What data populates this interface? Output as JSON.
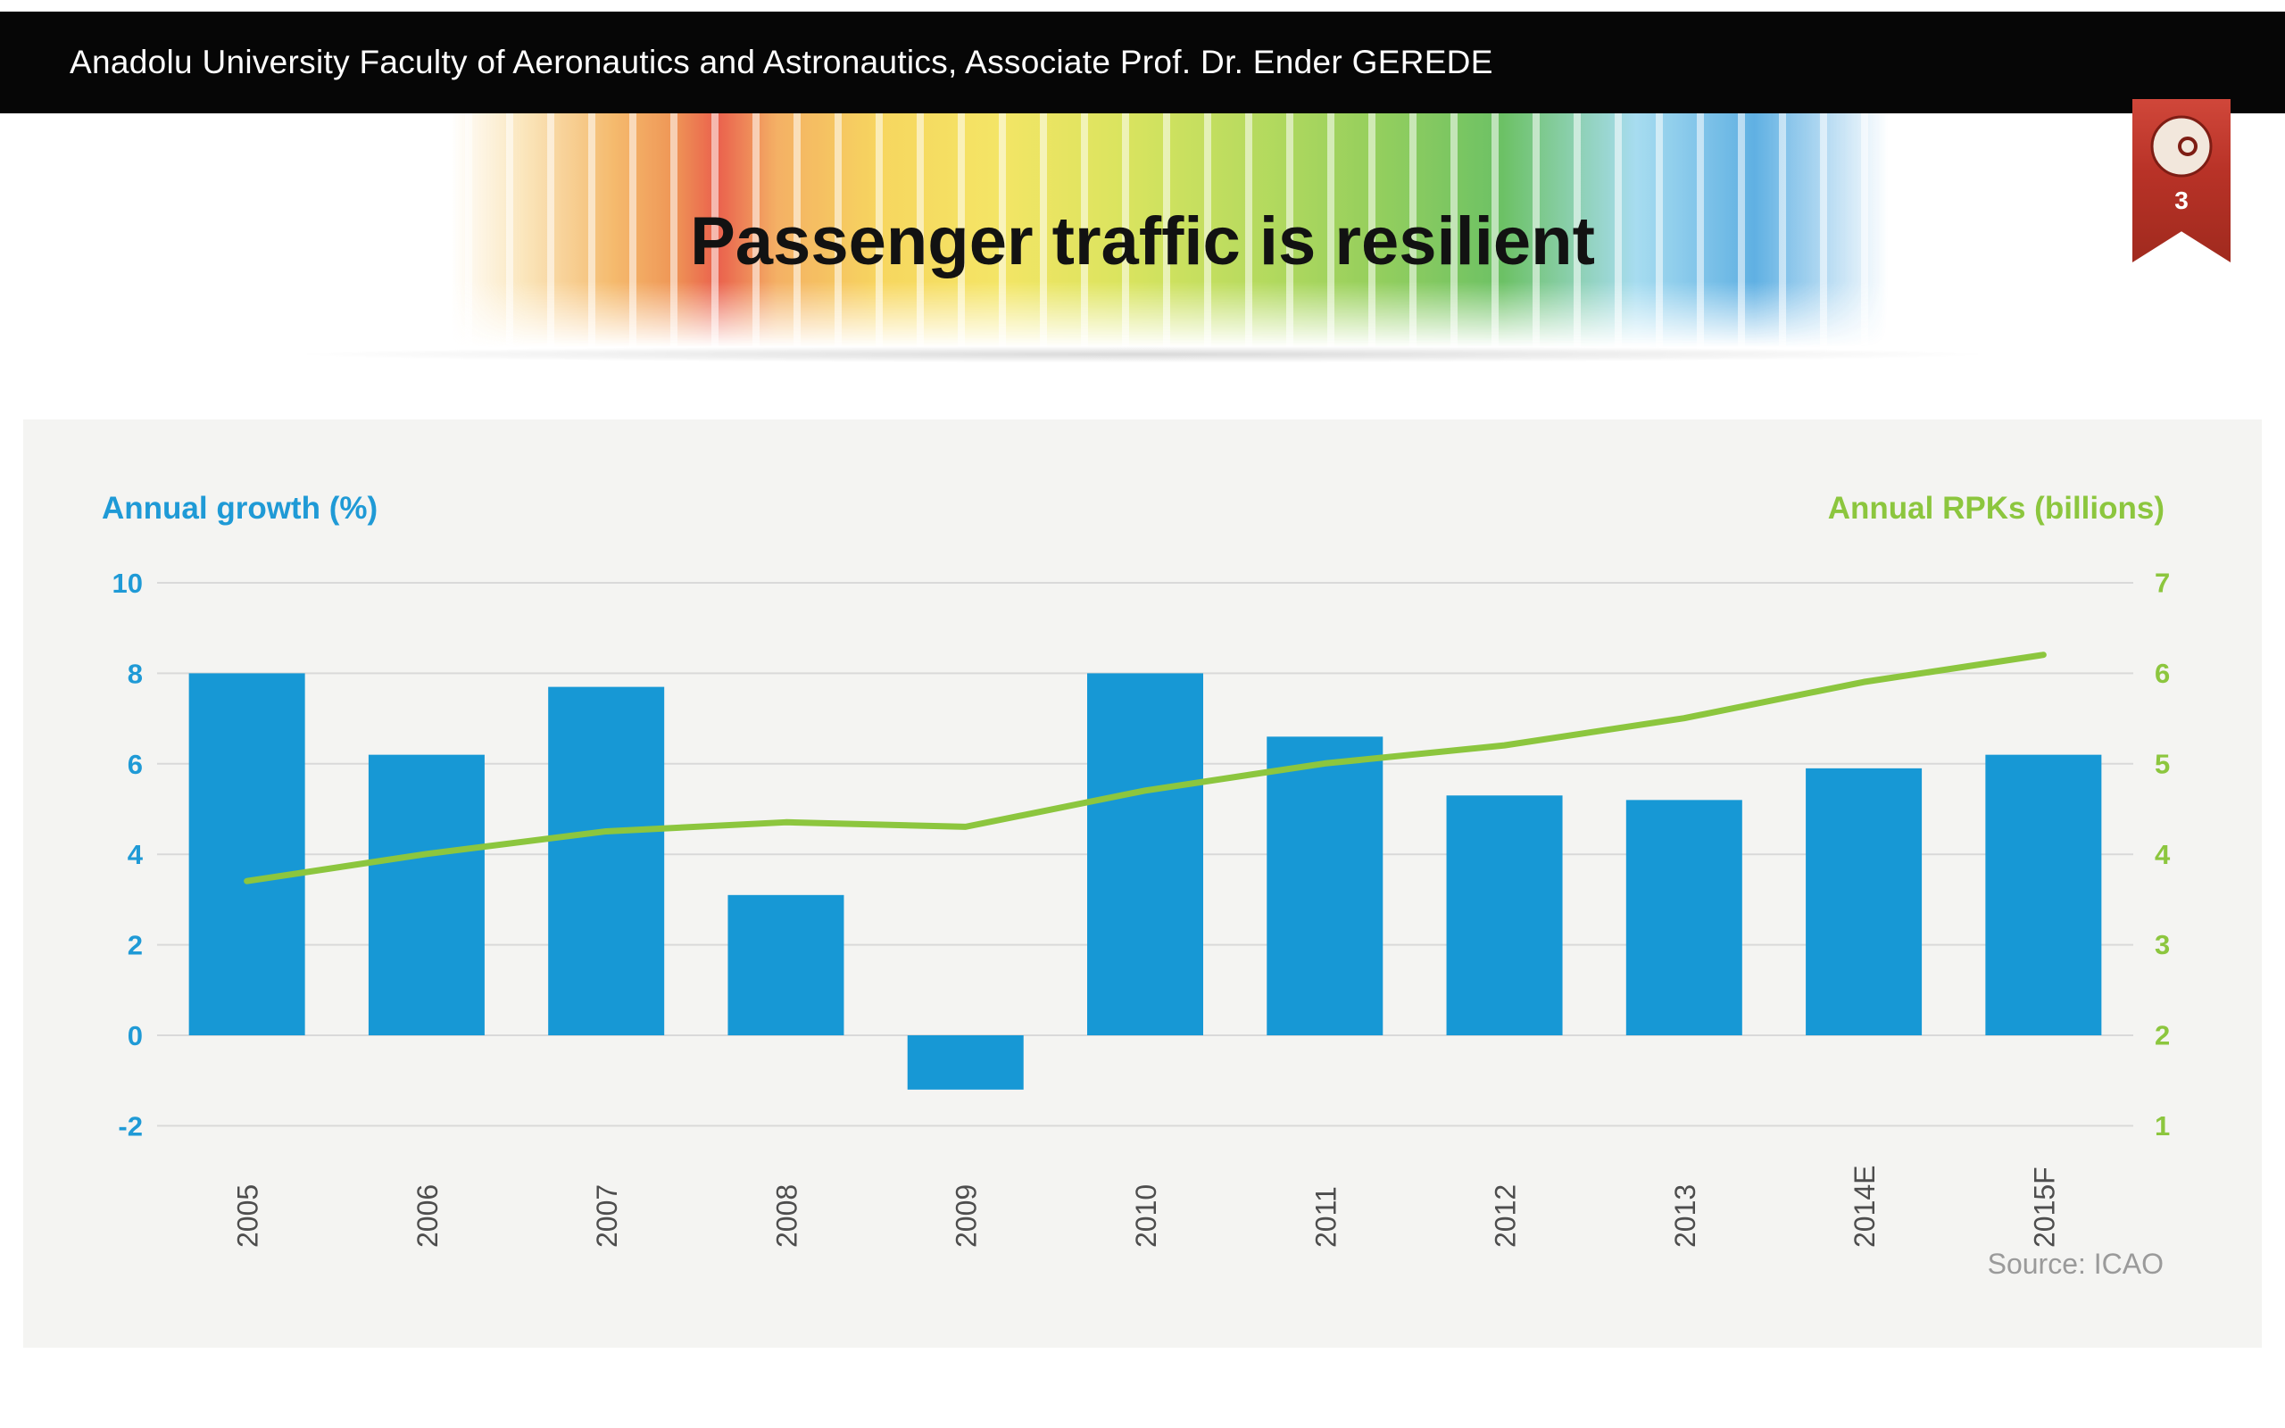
{
  "header": {
    "affiliation": "Anadolu University Faculty of Aeronautics and Astronautics, Associate Prof. Dr. Ender GEREDE"
  },
  "slide": {
    "title": "Passenger traffic is resilient",
    "number": "3"
  },
  "chart_data": {
    "type": "bar",
    "combo": "bar+line",
    "title": "Passenger traffic is resilient",
    "categories": [
      "2005",
      "2006",
      "2007",
      "2008",
      "2009",
      "2010",
      "2011",
      "2012",
      "2013",
      "2014E",
      "2015F"
    ],
    "series": [
      {
        "name": "Annual growth (%)",
        "type": "bar",
        "axis": "left",
        "color": "#1798d5",
        "values": [
          8.0,
          6.2,
          7.7,
          3.1,
          -1.2,
          8.0,
          6.6,
          5.3,
          5.2,
          5.9,
          6.2
        ]
      },
      {
        "name": "Annual RPKs (billions)",
        "type": "line",
        "axis": "right",
        "color": "#8cc63e",
        "values": [
          3.7,
          4.0,
          4.25,
          4.35,
          4.3,
          4.7,
          5.0,
          5.2,
          5.5,
          5.9,
          6.2
        ]
      }
    ],
    "left_axis": {
      "label": "Annual growth (%)",
      "color": "#1f9ad6",
      "ticks": [
        10,
        8,
        6,
        4,
        2,
        0,
        -2
      ],
      "range": [
        -2,
        10
      ]
    },
    "right_axis": {
      "label": "Annual RPKs (billions)",
      "color": "#8cc63e",
      "ticks": [
        7,
        6,
        5,
        4,
        3,
        2,
        1
      ],
      "range": [
        1,
        7
      ]
    },
    "grid": true,
    "grid_color": "#d9d9d9",
    "x_label_color": "#4d4d4d",
    "legend": "none",
    "source": "Source: ICAO"
  }
}
